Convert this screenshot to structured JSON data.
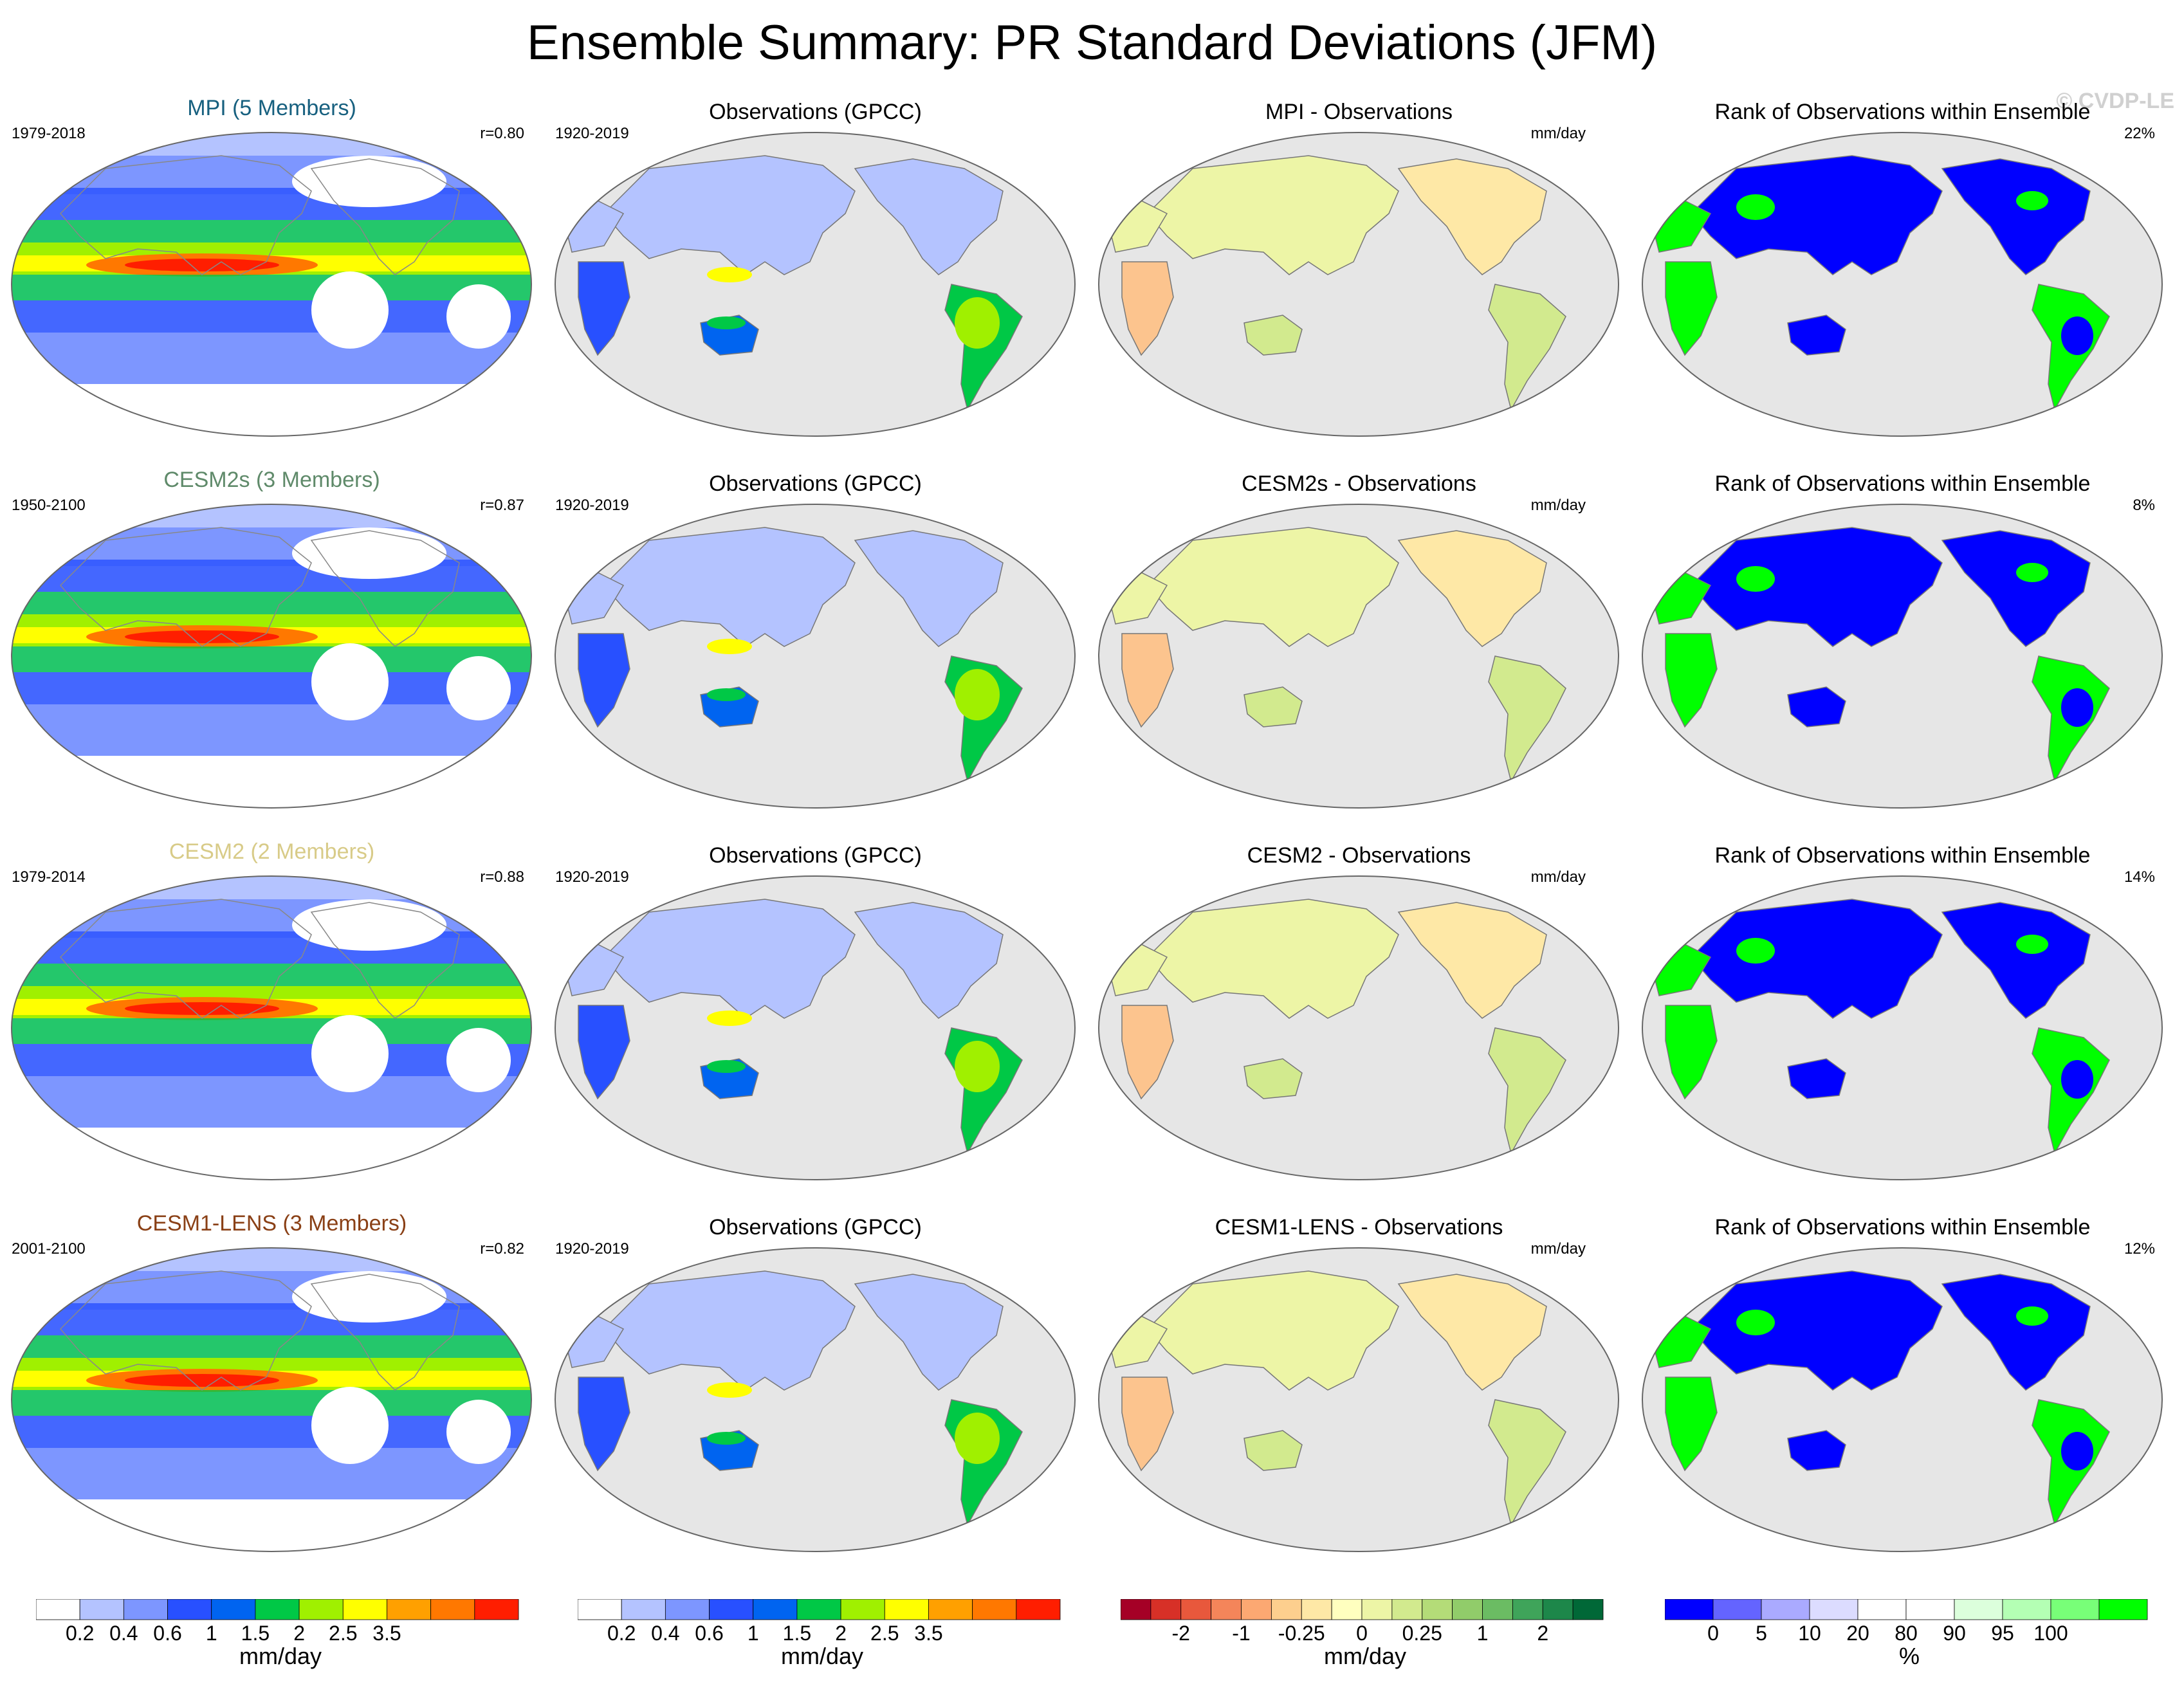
{
  "title": "Ensemble Summary: PR Standard Deviations (JFM)",
  "watermark": "© CVDP-LE",
  "colors": {
    "MPI": "#17607f",
    "CESM2s": "#5f8a6a",
    "CESM2": "#d8cb88",
    "CESM1-LENS": "#8a4016",
    "ocean": "#e6e6e6",
    "outline": "#999999"
  },
  "rows": [
    {
      "model": {
        "title": "MPI (5 Members)",
        "period": "1979-2018",
        "corr": "r=0.80",
        "key": "MPI"
      },
      "obs": {
        "title": "Observations (GPCC)",
        "period": "1920-2019"
      },
      "diff": {
        "title": "MPI - Observations",
        "units": "mm/day"
      },
      "rank": {
        "title": "Rank of Observations within Ensemble",
        "pct": "22%"
      }
    },
    {
      "model": {
        "title": "CESM2s (3 Members)",
        "period": "1950-2100",
        "corr": "r=0.87",
        "key": "CESM2s"
      },
      "obs": {
        "title": "Observations (GPCC)",
        "period": "1920-2019"
      },
      "diff": {
        "title": "CESM2s - Observations",
        "units": "mm/day"
      },
      "rank": {
        "title": "Rank of Observations within Ensemble",
        "pct": "8%"
      }
    },
    {
      "model": {
        "title": "CESM2 (2 Members)",
        "period": "1979-2014",
        "corr": "r=0.88",
        "key": "CESM2"
      },
      "obs": {
        "title": "Observations (GPCC)",
        "period": "1920-2019"
      },
      "diff": {
        "title": "CESM2 - Observations",
        "units": "mm/day"
      },
      "rank": {
        "title": "Rank of Observations within Ensemble",
        "pct": "14%"
      }
    },
    {
      "model": {
        "title": "CESM1-LENS (3 Members)",
        "period": "2001-2100",
        "corr": "r=0.82",
        "key": "CESM1-LENS"
      },
      "obs": {
        "title": "Observations (GPCC)",
        "period": "1920-2019"
      },
      "diff": {
        "title": "CESM1-LENS - Observations",
        "units": "mm/day"
      },
      "rank": {
        "title": "Rank of Observations within Ensemble",
        "pct": "12%"
      }
    }
  ],
  "colorbars": [
    {
      "units": "mm/day",
      "colors": [
        "#ffffff",
        "#b4c3ff",
        "#7d96ff",
        "#2850ff",
        "#0064f0",
        "#00c846",
        "#a0f000",
        "#ffff00",
        "#ffa000",
        "#ff7800",
        "#ff1e00"
      ],
      "labels": [
        "0.2",
        "0.4",
        "0.6",
        "1",
        "1.5",
        "2",
        "2.5",
        "3.5"
      ]
    },
    {
      "units": "mm/day",
      "colors": [
        "#ffffff",
        "#b4c3ff",
        "#7d96ff",
        "#2850ff",
        "#0064f0",
        "#00c846",
        "#a0f000",
        "#ffff00",
        "#ffa000",
        "#ff7800",
        "#ff1e00"
      ],
      "labels": [
        "0.2",
        "0.4",
        "0.6",
        "1",
        "1.5",
        "2",
        "2.5",
        "3.5"
      ]
    },
    {
      "units": "mm/day",
      "colors": [
        "#a50026",
        "#d73027",
        "#e8583c",
        "#f4855a",
        "#fca872",
        "#fdcf8e",
        "#fee8a6",
        "#ffffbf",
        "#edf5a6",
        "#d2ea8e",
        "#b4dc78",
        "#91cc6a",
        "#6bbc63",
        "#3fa45a",
        "#1d874a",
        "#006837"
      ],
      "labels": [
        "-2",
        "-1",
        "-0.25",
        "0",
        "0.25",
        "1",
        "2"
      ]
    },
    {
      "units": "%",
      "colors": [
        "#0000ff",
        "#6464ff",
        "#aaaaff",
        "#dcdcff",
        "#ffffff",
        "#ffffff",
        "#dcffdc",
        "#b4ffb4",
        "#78ff78",
        "#00ff00"
      ],
      "labels": [
        "0",
        "5",
        "10",
        "20",
        "80",
        "90",
        "95",
        "100"
      ]
    }
  ],
  "chart_data": [
    {
      "type": "heatmap",
      "title": "MPI (5 Members)",
      "period": "1979-2018",
      "pattern_correlation": 0.8,
      "colorbar_units": "mm/day"
    },
    {
      "type": "heatmap",
      "title": "Observations (GPCC)",
      "period": "1920-2019",
      "colorbar_units": "mm/day"
    },
    {
      "type": "heatmap",
      "title": "MPI - Observations",
      "colorbar_units": "mm/day"
    },
    {
      "type": "heatmap",
      "title": "Rank of Observations within Ensemble",
      "area_percent": 22,
      "colorbar_units": "%"
    },
    {
      "type": "heatmap",
      "title": "CESM2s (3 Members)",
      "period": "1950-2100",
      "pattern_correlation": 0.87,
      "colorbar_units": "mm/day"
    },
    {
      "type": "heatmap",
      "title": "Observations (GPCC)",
      "period": "1920-2019",
      "colorbar_units": "mm/day"
    },
    {
      "type": "heatmap",
      "title": "CESM2s - Observations",
      "colorbar_units": "mm/day"
    },
    {
      "type": "heatmap",
      "title": "Rank of Observations within Ensemble",
      "area_percent": 8,
      "colorbar_units": "%"
    },
    {
      "type": "heatmap",
      "title": "CESM2 (2 Members)",
      "period": "1979-2014",
      "pattern_correlation": 0.88,
      "colorbar_units": "mm/day"
    },
    {
      "type": "heatmap",
      "title": "Observations (GPCC)",
      "period": "1920-2019",
      "colorbar_units": "mm/day"
    },
    {
      "type": "heatmap",
      "title": "CESM2 - Observations",
      "colorbar_units": "mm/day"
    },
    {
      "type": "heatmap",
      "title": "Rank of Observations within Ensemble",
      "area_percent": 14,
      "colorbar_units": "%"
    },
    {
      "type": "heatmap",
      "title": "CESM1-LENS (3 Members)",
      "period": "2001-2100",
      "pattern_correlation": 0.82,
      "colorbar_units": "mm/day"
    },
    {
      "type": "heatmap",
      "title": "Observations (GPCC)",
      "period": "1920-2019",
      "colorbar_units": "mm/day"
    },
    {
      "type": "heatmap",
      "title": "CESM1-LENS - Observations",
      "colorbar_units": "mm/day"
    },
    {
      "type": "heatmap",
      "title": "Rank of Observations within Ensemble",
      "area_percent": 12,
      "colorbar_units": "%"
    }
  ]
}
